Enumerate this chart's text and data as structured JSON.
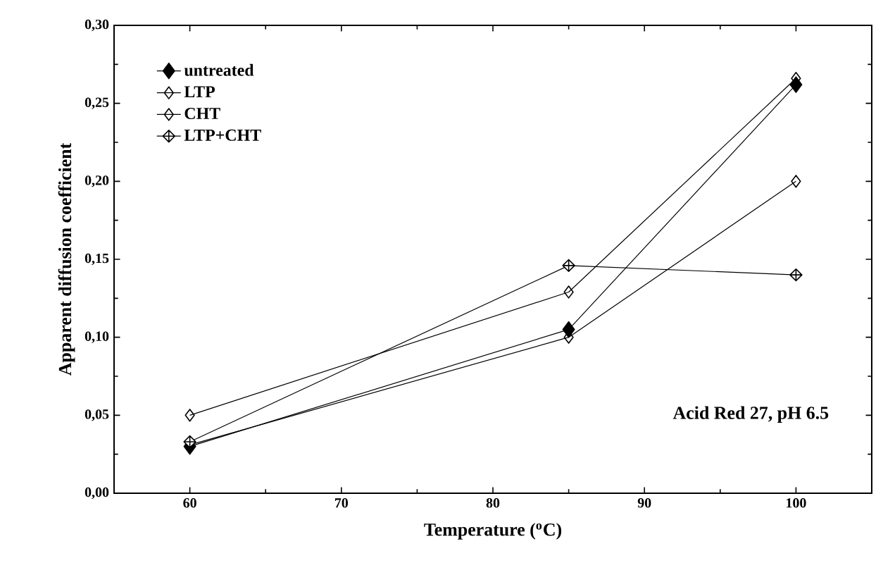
{
  "chart_data": {
    "type": "line",
    "xlabel": "Temperature ($^{o}$C)",
    "ylabel": "Apparent diffusion coefficient",
    "x": [
      60,
      85,
      100
    ],
    "series": [
      {
        "name": "untreated",
        "color": "#000000",
        "values": [
          0.03,
          0.105,
          0.262
        ]
      },
      {
        "name": "LTP",
        "color": "#000000",
        "values": [
          0.05,
          0.129,
          0.266
        ]
      },
      {
        "name": "CHT",
        "color": "#000000",
        "values": [
          0.031,
          0.1,
          0.2
        ]
      },
      {
        "name": "LTP+CHT",
        "color": "#000000",
        "values": [
          0.033,
          0.146,
          0.14
        ]
      }
    ],
    "xlim": [
      55,
      105
    ],
    "xticks": [
      60,
      70,
      80,
      90,
      100
    ],
    "ylim": [
      0,
      0.3
    ],
    "yticks": [
      {
        "value": 0,
        "label": "0,00"
      },
      {
        "value": 0.05,
        "label": "0,05"
      },
      {
        "value": 0.1,
        "label": "0,10"
      },
      {
        "value": 0.15,
        "label": "0,15"
      },
      {
        "value": 0.2,
        "label": "0,20"
      },
      {
        "value": 0.25,
        "label": "0,25"
      },
      {
        "value": 0.3,
        "label": "0,30"
      }
    ],
    "annotations": [
      "Acid Red 27, pH 6.5"
    ],
    "legend": "top left",
    "marker": "diamond",
    "line_style": "solid",
    "grid": false
  }
}
